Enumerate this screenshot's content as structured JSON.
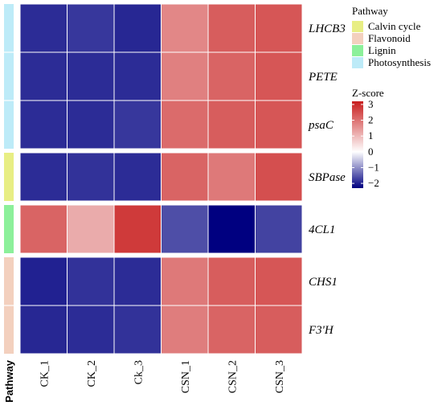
{
  "chart_data": {
    "type": "heatmap",
    "columns": [
      "CK_1",
      "CK_2",
      "Ck_3",
      "CSN_1",
      "CSN_2",
      "CSN_3"
    ],
    "pathway_axis_label": "Pathway",
    "groups": [
      {
        "pathway": "Photosynthesis",
        "genes": [
          {
            "name": "LHCB3",
            "values": [
              -1.9,
              -1.8,
              -1.95,
              1.7,
              2.3,
              2.4
            ]
          },
          {
            "name": "PETE",
            "values": [
              -1.9,
              -1.9,
              -1.9,
              1.8,
              2.2,
              2.4
            ]
          },
          {
            "name": "psaC",
            "values": [
              -1.9,
              -1.9,
              -1.8,
              2.1,
              2.3,
              2.4
            ]
          }
        ]
      },
      {
        "pathway": "Calvin cycle",
        "genes": [
          {
            "name": "SBPase",
            "values": [
              -1.9,
              -1.85,
              -1.9,
              2.2,
              1.9,
              2.5
            ]
          }
        ]
      },
      {
        "pathway": "Lignin",
        "genes": [
          {
            "name": "4CL1",
            "values": [
              2.2,
              1.2,
              2.8,
              -1.6,
              -2.3,
              -1.7
            ]
          }
        ]
      },
      {
        "pathway": "Flavonoid",
        "genes": [
          {
            "name": "CHS1",
            "values": [
              -2.0,
              -1.85,
              -1.9,
              1.9,
              2.3,
              2.4
            ]
          },
          {
            "name": "F3'H",
            "values": [
              -1.95,
              -1.9,
              -1.85,
              1.85,
              2.2,
              2.3
            ]
          }
        ]
      }
    ],
    "pathway_legend": {
      "title": "Pathway",
      "items": [
        {
          "label": "Calvin cycle",
          "color": "#E8EE84"
        },
        {
          "label": "Flavonoid",
          "color": "#F3D0BE"
        },
        {
          "label": "Lignin",
          "color": "#8CF09A"
        },
        {
          "label": "Photosynthesis",
          "color": "#BDEBF8"
        }
      ]
    },
    "zscore_legend": {
      "title": "Z-score",
      "ticks": [
        3,
        2,
        1,
        0,
        -1,
        -2
      ],
      "range": [
        -2.3,
        3.2
      ],
      "colors": {
        "low": "#000080",
        "mid": "#FFFFFF",
        "high": "#C81E1E"
      }
    }
  }
}
